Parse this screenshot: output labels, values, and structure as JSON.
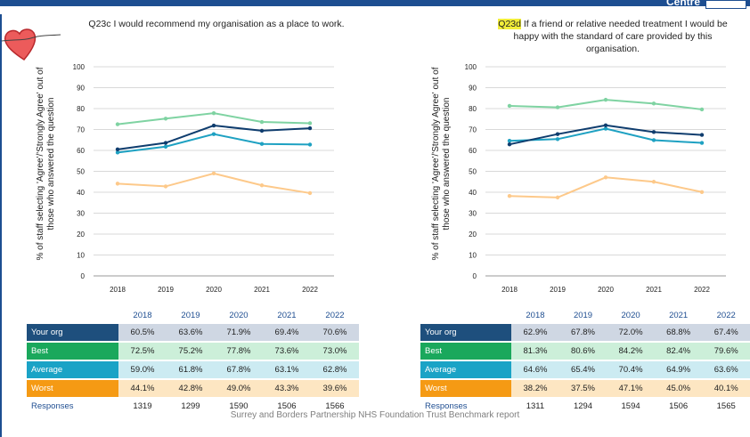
{
  "header": {
    "corner_title": "Centre"
  },
  "footer": "Surrey and Borders Partnership NHS Foundation Trust Benchmark report",
  "colors": {
    "your_org": "#0f3d6e",
    "best": "#7fd3a2",
    "average": "#1ea1c2",
    "worst": "#fdc98a"
  },
  "chart_data": [
    {
      "type": "line",
      "title_prefix": "Q23c",
      "title": "I would recommend my organisation as a place to work.",
      "ylabel": "% of staff selecting 'Agree'/'Strongly Agree' out of those who answered the question",
      "x": [
        "2018",
        "2019",
        "2020",
        "2021",
        "2022"
      ],
      "ylim": [
        0,
        100
      ],
      "yticks": [
        0,
        10,
        20,
        30,
        40,
        50,
        60,
        70,
        80,
        90,
        100
      ],
      "series": [
        {
          "name": "Your org",
          "key": "your_org",
          "values": [
            60.5,
            63.6,
            71.9,
            69.4,
            70.6
          ],
          "labels": [
            "60.5%",
            "63.6%",
            "71.9%",
            "69.4%",
            "70.6%"
          ]
        },
        {
          "name": "Best",
          "key": "best",
          "values": [
            72.5,
            75.2,
            77.8,
            73.6,
            73.0
          ],
          "labels": [
            "72.5%",
            "75.2%",
            "77.8%",
            "73.6%",
            "73.0%"
          ]
        },
        {
          "name": "Average",
          "key": "average",
          "values": [
            59.0,
            61.8,
            67.8,
            63.1,
            62.8
          ],
          "labels": [
            "59.0%",
            "61.8%",
            "67.8%",
            "63.1%",
            "62.8%"
          ]
        },
        {
          "name": "Worst",
          "key": "worst",
          "values": [
            44.1,
            42.8,
            49.0,
            43.3,
            39.6
          ],
          "labels": [
            "44.1%",
            "42.8%",
            "49.0%",
            "43.3%",
            "39.6%"
          ]
        }
      ],
      "responses_label": "Responses",
      "responses": [
        "1319",
        "1299",
        "1590",
        "1506",
        "1566"
      ]
    },
    {
      "type": "line",
      "title_prefix": "Q23d",
      "title": "If a friend or relative needed treatment I would be happy with the standard of care provided by this organisation.",
      "ylabel": "% of staff selecting 'Agree'/'Strongly Agree' out of those who answered the question",
      "x": [
        "2018",
        "2019",
        "2020",
        "2021",
        "2022"
      ],
      "ylim": [
        0,
        100
      ],
      "yticks": [
        0,
        10,
        20,
        30,
        40,
        50,
        60,
        70,
        80,
        90,
        100
      ],
      "series": [
        {
          "name": "Your org",
          "key": "your_org",
          "values": [
            62.9,
            67.8,
            72.0,
            68.8,
            67.4
          ],
          "labels": [
            "62.9%",
            "67.8%",
            "72.0%",
            "68.8%",
            "67.4%"
          ]
        },
        {
          "name": "Best",
          "key": "best",
          "values": [
            81.3,
            80.6,
            84.2,
            82.4,
            79.6
          ],
          "labels": [
            "81.3%",
            "80.6%",
            "84.2%",
            "82.4%",
            "79.6%"
          ]
        },
        {
          "name": "Average",
          "key": "average",
          "values": [
            64.6,
            65.4,
            70.4,
            64.9,
            63.6
          ],
          "labels": [
            "64.6%",
            "65.4%",
            "70.4%",
            "64.9%",
            "63.6%"
          ]
        },
        {
          "name": "Worst",
          "key": "worst",
          "values": [
            38.2,
            37.5,
            47.1,
            45.0,
            40.1
          ],
          "labels": [
            "38.2%",
            "37.5%",
            "47.1%",
            "45.0%",
            "40.1%"
          ]
        }
      ],
      "responses_label": "Responses",
      "responses": [
        "1311",
        "1294",
        "1594",
        "1506",
        "1565"
      ]
    }
  ]
}
